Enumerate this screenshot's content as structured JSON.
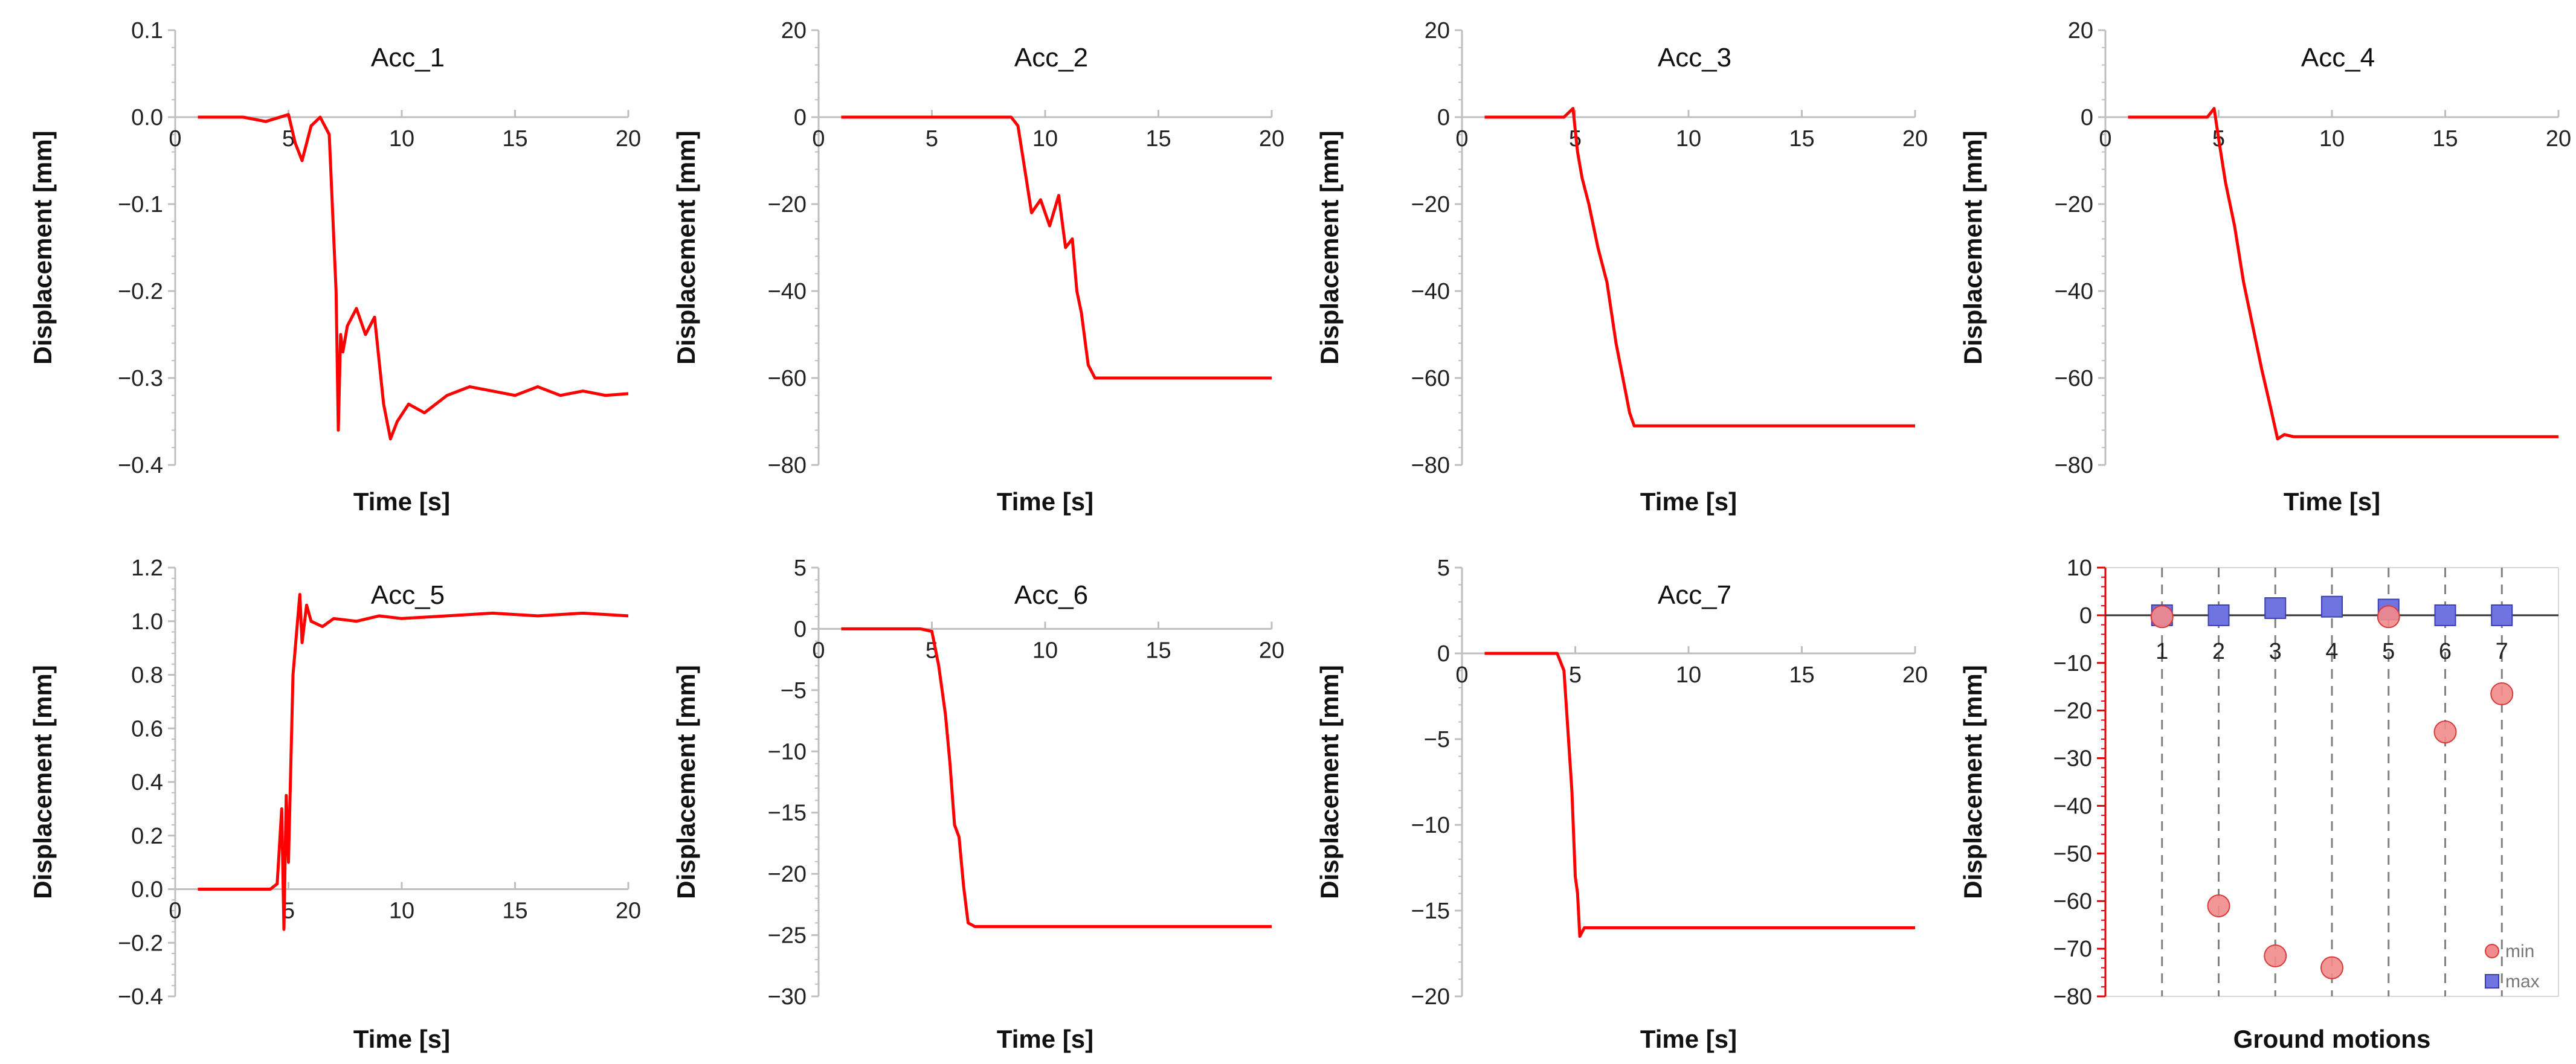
{
  "colors": {
    "line": "#ff0000",
    "min_marker": "#f28b8b",
    "min_edge": "#d93a3a",
    "max_marker": "#6f74e0",
    "max_edge": "#3b3fae",
    "axis": "#bfbfbf",
    "zero": "#8c8c8c",
    "dash": "#808080",
    "red_axis": "#e00000"
  },
  "chart_data": [
    {
      "type": "line",
      "title": "Acc_1",
      "xlabel": "Time [s]",
      "ylabel": "Displacement [mm]",
      "xlim": [
        0,
        20
      ],
      "ylim": [
        -0.4,
        0.1
      ],
      "xticks": [
        "0",
        "5",
        "10",
        "15",
        "20"
      ],
      "yticks": [
        "0.1",
        "0.0",
        "−0.1",
        "−0.2",
        "−0.3",
        "−0.4"
      ],
      "x": [
        1,
        3,
        4,
        5,
        5.3,
        5.6,
        6,
        6.4,
        6.8,
        7.1,
        7.2,
        7.3,
        7.4,
        7.6,
        8.0,
        8.4,
        8.8,
        9.2,
        9.5,
        9.8,
        10.3,
        11,
        12,
        13,
        14,
        15,
        16,
        17,
        18,
        19,
        20
      ],
      "y": [
        0.0,
        0.0,
        -0.005,
        0.003,
        -0.03,
        -0.05,
        -0.01,
        0.0,
        -0.02,
        -0.2,
        -0.36,
        -0.25,
        -0.27,
        -0.24,
        -0.22,
        -0.25,
        -0.23,
        -0.33,
        -0.37,
        -0.35,
        -0.33,
        -0.34,
        -0.32,
        -0.31,
        -0.315,
        -0.32,
        -0.31,
        -0.32,
        -0.315,
        -0.32,
        -0.318
      ]
    },
    {
      "type": "line",
      "title": "Acc_2",
      "xlabel": "Time [s]",
      "ylabel": "Displacement [mm]",
      "xlim": [
        0,
        20
      ],
      "ylim": [
        -80,
        20
      ],
      "xticks": [
        "0",
        "5",
        "10",
        "15",
        "20"
      ],
      "yticks": [
        "20",
        "0",
        "−20",
        "−40",
        "−60",
        "−80"
      ],
      "x": [
        1,
        5,
        8.5,
        8.8,
        9.1,
        9.4,
        9.8,
        10.2,
        10.6,
        10.9,
        11.2,
        11.4,
        11.6,
        11.9,
        12.2,
        13,
        20
      ],
      "y": [
        0,
        0,
        0,
        -2,
        -12,
        -22,
        -19,
        -25,
        -18,
        -30,
        -28,
        -40,
        -45,
        -57,
        -60,
        -60,
        -60
      ]
    },
    {
      "type": "line",
      "title": "Acc_3",
      "xlabel": "Time [s]",
      "ylabel": "Displacement [mm]",
      "xlim": [
        0,
        20
      ],
      "ylim": [
        -80,
        20
      ],
      "xticks": [
        "0",
        "5",
        "10",
        "15",
        "20"
      ],
      "yticks": [
        "20",
        "0",
        "−20",
        "−40",
        "−60",
        "−80"
      ],
      "x": [
        1,
        4.5,
        4.9,
        5.0,
        5.1,
        5.3,
        5.6,
        6.0,
        6.4,
        6.8,
        7.1,
        7.4,
        7.6,
        8.0,
        12,
        20
      ],
      "y": [
        0,
        0,
        2,
        -3,
        -8,
        -14,
        -20,
        -30,
        -38,
        -52,
        -60,
        -68,
        -71,
        -71,
        -71,
        -71
      ]
    },
    {
      "type": "line",
      "title": "Acc_4",
      "xlabel": "Time [s]",
      "ylabel": "Displacement [mm]",
      "xlim": [
        0,
        20
      ],
      "ylim": [
        -80,
        20
      ],
      "xticks": [
        "0",
        "5",
        "10",
        "15",
        "20"
      ],
      "yticks": [
        "20",
        "0",
        "−20",
        "−40",
        "−60",
        "−80"
      ],
      "x": [
        1,
        4.5,
        4.8,
        5.0,
        5.3,
        5.7,
        6.1,
        6.5,
        6.9,
        7.3,
        7.6,
        7.9,
        8.3,
        12,
        20
      ],
      "y": [
        0,
        0,
        2,
        -5,
        -15,
        -25,
        -38,
        -48,
        -58,
        -67,
        -74,
        -73,
        -73.5,
        -73.5,
        -73.5
      ]
    },
    {
      "type": "line",
      "title": "Acc_5",
      "xlabel": "Time [s]",
      "ylabel": "Displacement [mm]",
      "xlim": [
        0,
        20
      ],
      "ylim": [
        -0.4,
        1.2
      ],
      "xticks": [
        "0",
        "5",
        "10",
        "15",
        "20"
      ],
      "yticks": [
        "1.2",
        "1.0",
        "0.8",
        "0.6",
        "0.4",
        "0.2",
        "0.0",
        "−0.2",
        "−0.4"
      ],
      "x": [
        1,
        3,
        4.2,
        4.5,
        4.7,
        4.8,
        4.9,
        5.0,
        5.2,
        5.4,
        5.5,
        5.6,
        5.8,
        6.0,
        6.5,
        7,
        8,
        9,
        10,
        12,
        14,
        16,
        18,
        20
      ],
      "y": [
        0.0,
        0.0,
        0.0,
        0.02,
        0.3,
        -0.15,
        0.35,
        0.1,
        0.8,
        1.0,
        1.1,
        0.92,
        1.06,
        1.0,
        0.98,
        1.01,
        1.0,
        1.02,
        1.01,
        1.02,
        1.03,
        1.02,
        1.03,
        1.02
      ]
    },
    {
      "type": "line",
      "title": "Acc_6",
      "xlabel": "Time [s]",
      "ylabel": "Displacement [mm]",
      "xlim": [
        0,
        20
      ],
      "ylim": [
        -30,
        5
      ],
      "xticks": [
        "0",
        "5",
        "10",
        "15",
        "20"
      ],
      "yticks": [
        "5",
        "0",
        "−5",
        "−10",
        "−15",
        "−20",
        "−25",
        "−30"
      ],
      "x": [
        1,
        4.5,
        5.0,
        5.3,
        5.6,
        5.8,
        6.0,
        6.2,
        6.4,
        6.6,
        6.9,
        8,
        12,
        20
      ],
      "y": [
        0,
        0,
        -0.2,
        -3,
        -7,
        -11,
        -16,
        -17,
        -21,
        -24,
        -24.3,
        -24.3,
        -24.3,
        -24.3
      ]
    },
    {
      "type": "line",
      "title": "Acc_7",
      "xlabel": "Time [s]",
      "ylabel": "Displacement [mm]",
      "xlim": [
        0,
        20
      ],
      "ylim": [
        -20,
        5
      ],
      "xticks": [
        "0",
        "5",
        "10",
        "15",
        "20"
      ],
      "yticks": [
        "5",
        "0",
        "−5",
        "−10",
        "−15",
        "−20"
      ],
      "x": [
        1,
        4.2,
        4.5,
        4.7,
        4.85,
        5.0,
        5.1,
        5.2,
        5.4,
        6,
        12,
        20
      ],
      "y": [
        0,
        0,
        -1,
        -5,
        -8,
        -13,
        -14,
        -16.5,
        -16,
        -16,
        -16,
        -16
      ]
    },
    {
      "type": "scatter",
      "title": "",
      "xlabel": "Ground motions",
      "ylabel": "Displacement [mm]",
      "xlim": [
        0,
        8
      ],
      "ylim": [
        -80,
        10
      ],
      "categories": [
        "1",
        "2",
        "3",
        "4",
        "5",
        "6",
        "7"
      ],
      "yticks": [
        "10",
        "0",
        "−10",
        "−20",
        "−30",
        "−40",
        "−50",
        "−60",
        "−70",
        "−80"
      ],
      "series": [
        {
          "name": "min",
          "values": [
            -0.3,
            -61,
            -71.5,
            -74,
            -0.3,
            -24.5,
            -16.5
          ]
        },
        {
          "name": "max",
          "values": [
            0,
            0,
            1.5,
            1.8,
            1.2,
            0,
            0
          ]
        }
      ],
      "legend": [
        "min",
        "max"
      ]
    }
  ]
}
